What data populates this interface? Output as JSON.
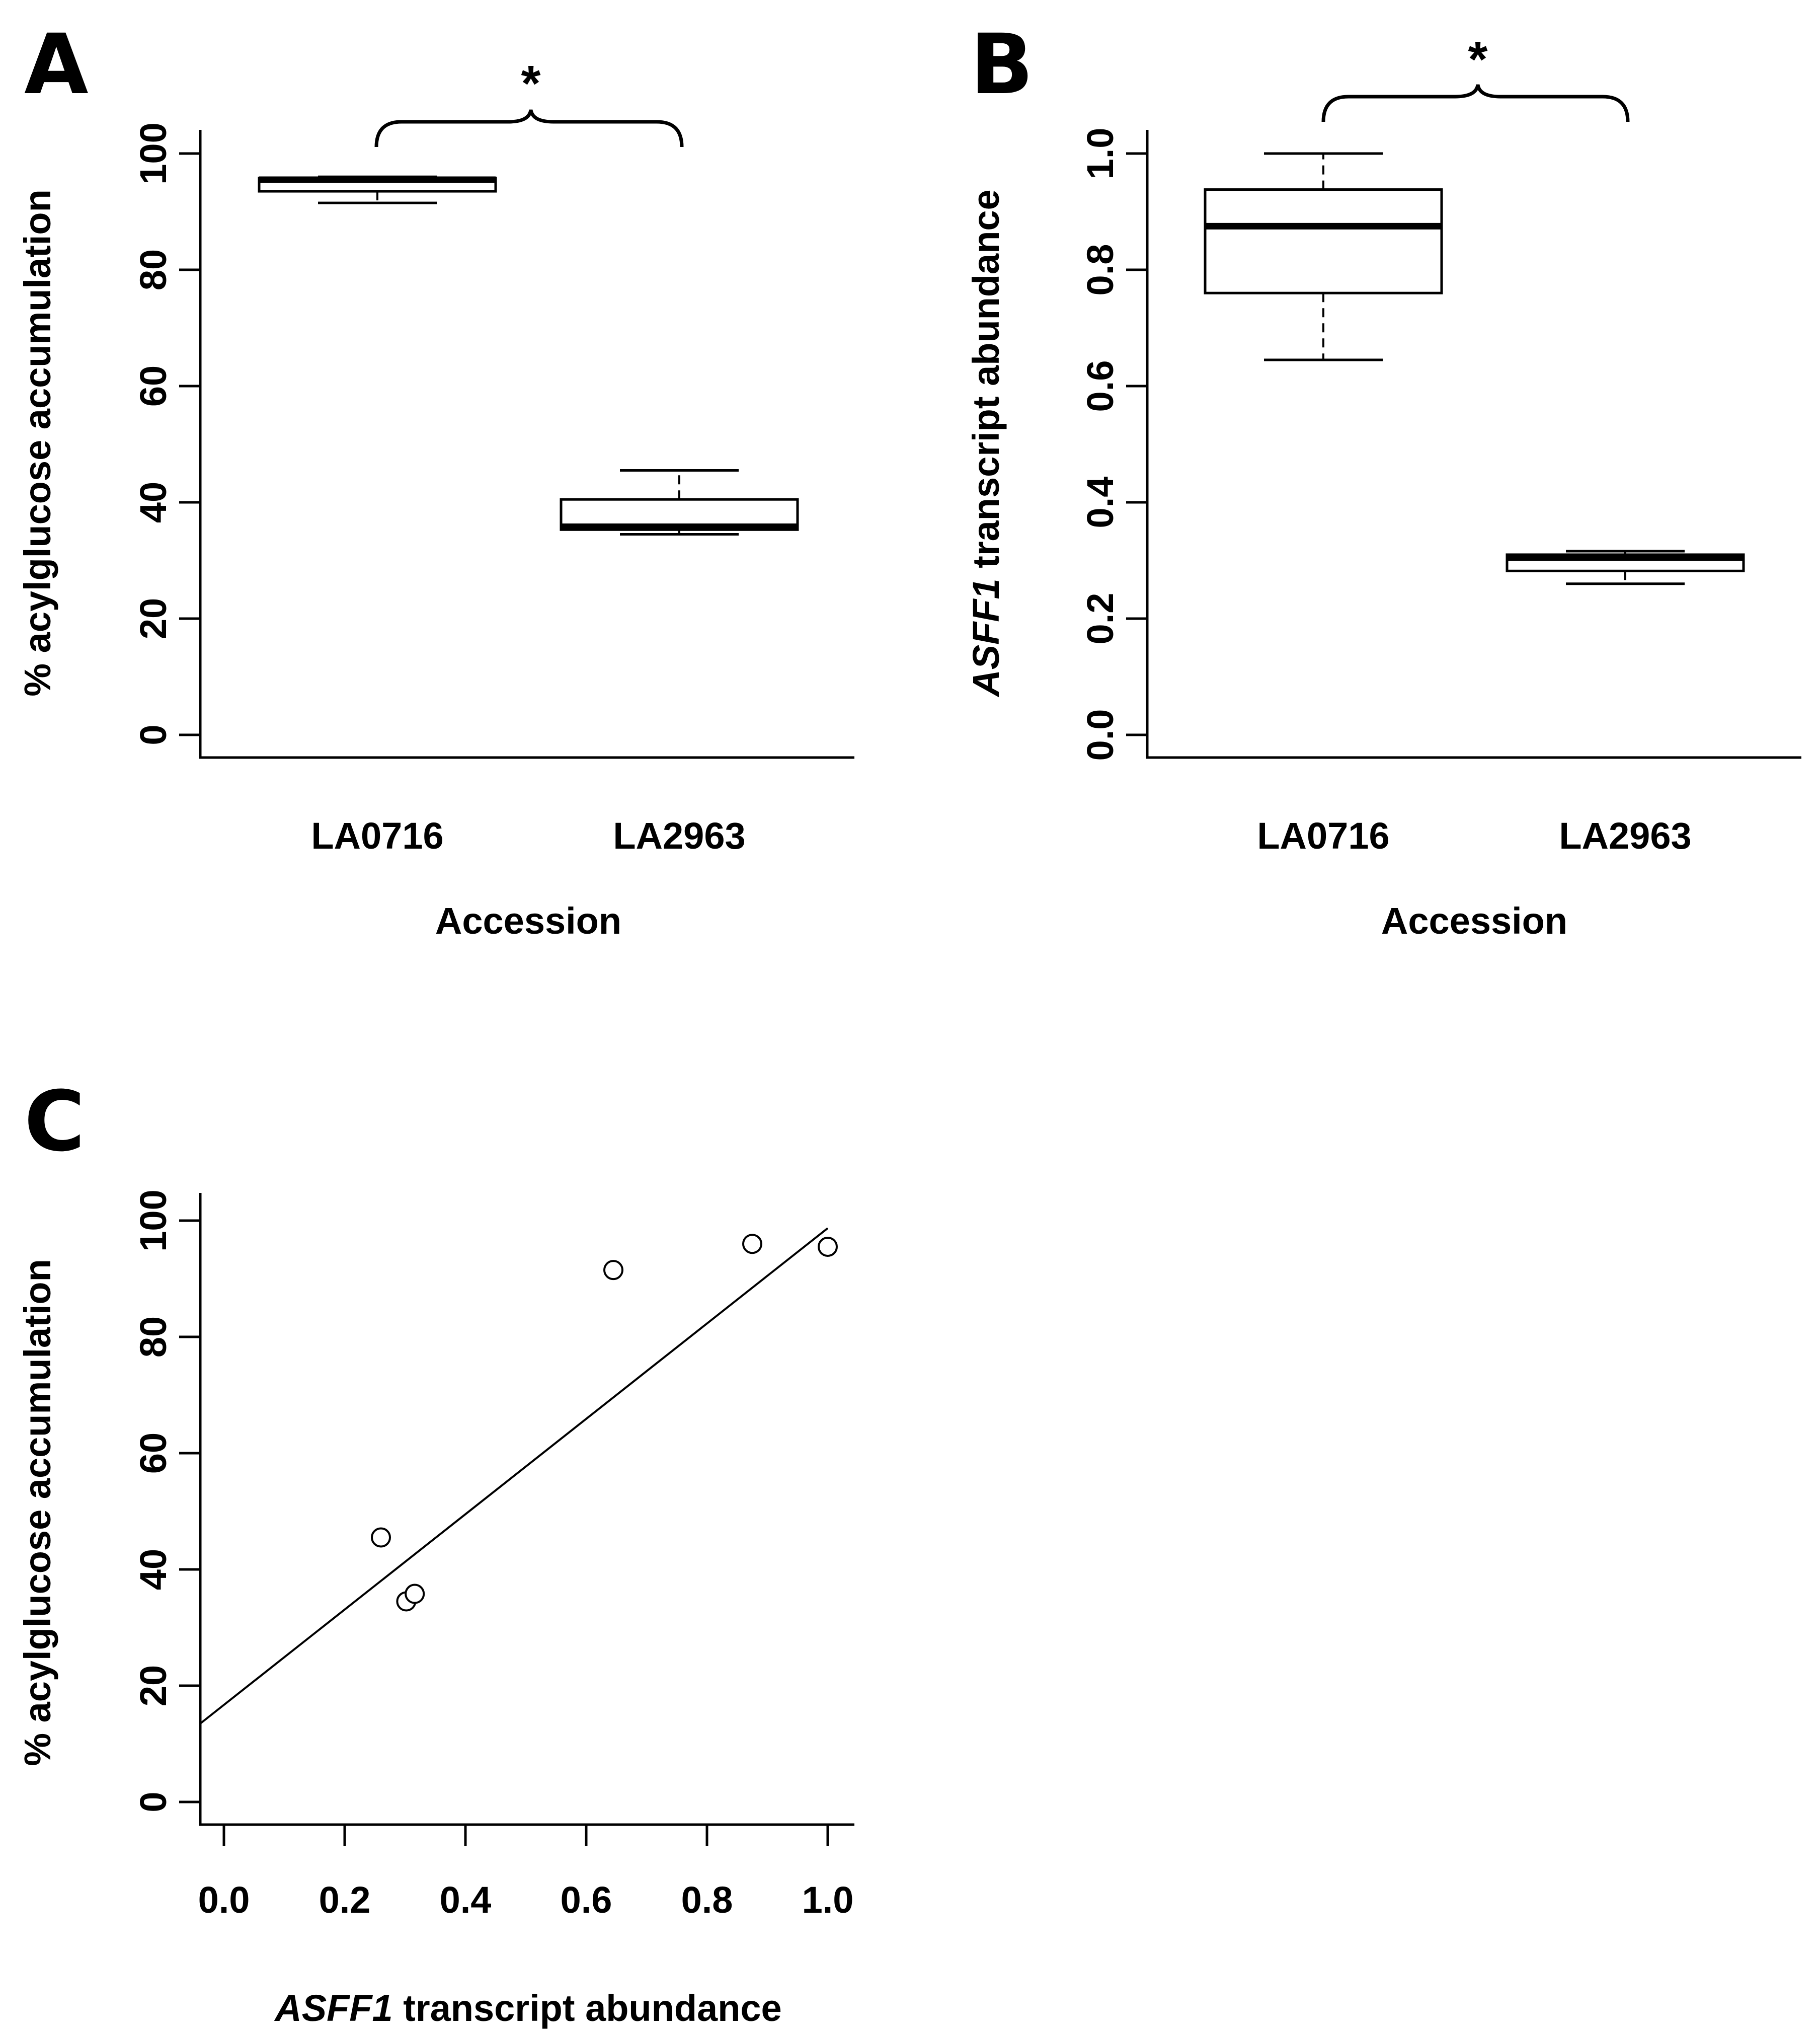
{
  "chart_data": [
    {
      "panel": "A",
      "type": "box",
      "xlabel": "Accession",
      "ylabel": "% acylglucose accumulation",
      "ylim": [
        0,
        100
      ],
      "yticks": [
        0,
        20,
        40,
        60,
        80,
        100
      ],
      "categories": [
        "LA0716",
        "LA2963"
      ],
      "boxes": [
        {
          "name": "LA0716",
          "whisker_low": 91.5,
          "q1": 93.5,
          "median": 95.5,
          "q3": 95.8,
          "whisker_high": 96.0
        },
        {
          "name": "LA2963",
          "whisker_low": 34.5,
          "q1": 35.3,
          "median": 35.8,
          "q3": 40.5,
          "whisker_high": 45.5
        }
      ],
      "annotation": "*"
    },
    {
      "panel": "B",
      "type": "box",
      "xlabel": "Accession",
      "ylabel_italic": "ASFF1",
      "ylabel": " transcript abundance",
      "ylim": [
        0,
        1
      ],
      "yticks": [
        "0.0",
        "0.2",
        "0.4",
        "0.6",
        "0.8",
        "1.0"
      ],
      "categories": [
        "LA0716",
        "LA2963"
      ],
      "boxes": [
        {
          "name": "LA0716",
          "whisker_low": 0.645,
          "q1": 0.76,
          "median": 0.875,
          "q3": 0.938,
          "whisker_high": 1.0
        },
        {
          "name": "LA2963",
          "whisker_low": 0.26,
          "q1": 0.282,
          "median": 0.305,
          "q3": 0.31,
          "whisker_high": 0.316
        }
      ],
      "annotation": "*"
    },
    {
      "panel": "C",
      "type": "scatter",
      "xlabel_italic": "ASFF1",
      "xlabel": " transcript abundance",
      "ylabel": "% acylglucose accumulation",
      "xlim": [
        0,
        1
      ],
      "ylim": [
        0,
        100
      ],
      "xticks": [
        "0.0",
        "0.2",
        "0.4",
        "0.6",
        "0.8",
        "1.0"
      ],
      "yticks": [
        0,
        20,
        40,
        60,
        80,
        100
      ],
      "points": [
        {
          "x": 0.26,
          "y": 45.5
        },
        {
          "x": 0.302,
          "y": 34.5
        },
        {
          "x": 0.316,
          "y": 35.8
        },
        {
          "x": 0.645,
          "y": 91.5
        },
        {
          "x": 0.875,
          "y": 96.0
        },
        {
          "x": 1.0,
          "y": 95.5
        }
      ],
      "fit_line": {
        "intercept": 16.7,
        "slope": 82.0
      }
    }
  ]
}
